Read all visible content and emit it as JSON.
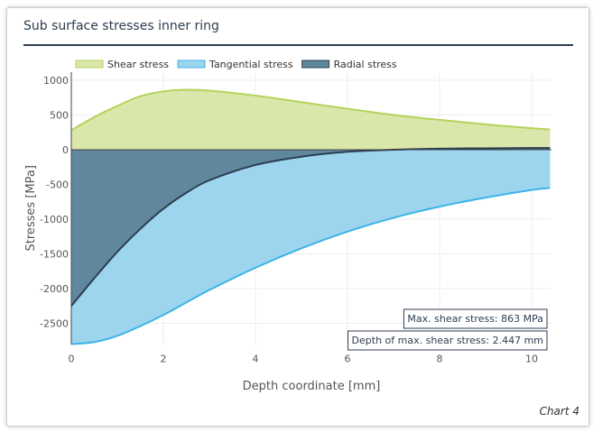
{
  "card": {
    "title": "Sub surface stresses inner ring",
    "footer": "Chart 4"
  },
  "chart_data": {
    "type": "area",
    "xlabel": "Depth coordinate [mm]",
    "ylabel": "Stresses [MPa]",
    "xlim": [
      0,
      10.4
    ],
    "ylim": [
      -2800,
      1000
    ],
    "xticks": [
      0,
      2,
      4,
      6,
      8,
      10
    ],
    "yticks": [
      1000,
      500,
      0,
      -500,
      -1000,
      -1500,
      -2000,
      -2500
    ],
    "grid": true,
    "legend_position": "top-left",
    "x": [
      0,
      0.5,
      1,
      1.5,
      2,
      2.5,
      3,
      4,
      5,
      6,
      7,
      8,
      9,
      10,
      10.4
    ],
    "series": [
      {
        "name": "Shear stress",
        "color": "#b5d25a",
        "fill": "#d9e7aa",
        "values": [
          280,
          470,
          630,
          770,
          840,
          863,
          850,
          780,
          685,
          590,
          500,
          430,
          365,
          310,
          290
        ]
      },
      {
        "name": "Tangential stress",
        "color": "#3db4e5",
        "fill": "#9dd4ee",
        "values": [
          -2800,
          -2770,
          -2680,
          -2540,
          -2380,
          -2200,
          -2020,
          -1700,
          -1420,
          -1180,
          -980,
          -820,
          -690,
          -580,
          -550
        ]
      },
      {
        "name": "Radial stress",
        "color": "#2c3e50",
        "fill": "#5f889e",
        "values": [
          -2250,
          -1850,
          -1470,
          -1140,
          -850,
          -620,
          -440,
          -220,
          -100,
          -30,
          0,
          15,
          20,
          25,
          25
        ]
      }
    ],
    "annotations": [
      "Max. shear stress: 863 MPa",
      "Depth of max. shear stress: 2.447 mm"
    ]
  }
}
